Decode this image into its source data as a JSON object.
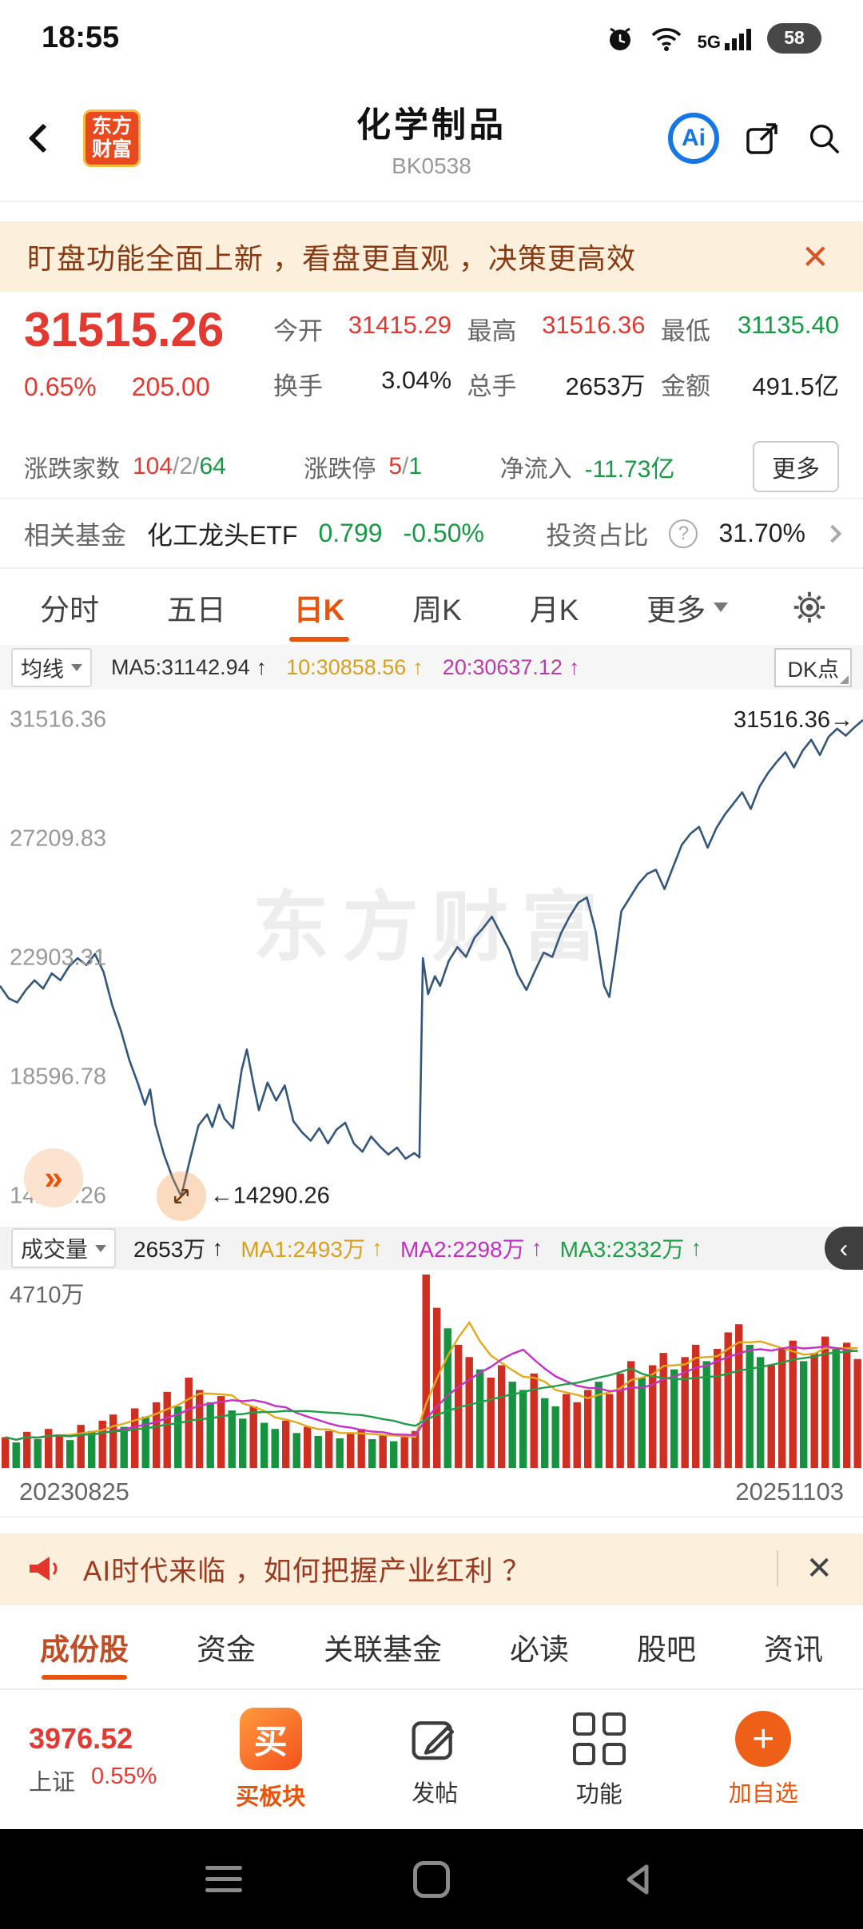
{
  "status_bar": {
    "time": "18:55",
    "network": "5G",
    "battery": "58"
  },
  "header": {
    "title": "化学制品",
    "code": "BK0538",
    "logo_line1": "东方",
    "logo_line2": "财富",
    "ai_label": "Ai"
  },
  "icons": {
    "close": "✕",
    "double_chevron": "»",
    "chevron_left": "‹",
    "help": "?",
    "plus": "+",
    "up_arrow": "↑"
  },
  "notice": {
    "text": "盯盘功能全面上新 ，看盘更直观 ，决策更高效"
  },
  "quote": {
    "price": "31515.26",
    "change_pct": "0.65%",
    "change_amt": "205.00",
    "open_label": "今开",
    "open": "31415.29",
    "high_label": "最高",
    "high": "31516.36",
    "low_label": "最低",
    "low": "31135.40",
    "turnover_label": "换手",
    "turnover": "3.04%",
    "volume_label": "总手",
    "volume": "2653万",
    "amount_label": "金额",
    "amount": "491.5亿",
    "adv_dec_label": "涨跌家数",
    "adv": "104",
    "flat": "2",
    "dec": "64",
    "slash": "/",
    "limit_label": "涨跌停",
    "limit_up": "5",
    "limit_down": "1",
    "inflow_label": "净流入",
    "inflow": "-11.73亿",
    "more_label": "更多"
  },
  "fund": {
    "label": "相关基金",
    "name": "化工龙头ETF",
    "price": "0.799",
    "change": "-0.50%",
    "ratio_label": "投资占比",
    "ratio": "31.70%"
  },
  "chart_tabs": {
    "items": [
      "分时",
      "五日",
      "日K",
      "周K",
      "月K"
    ],
    "more": "更多",
    "active_index": 2
  },
  "ma_bar": {
    "selector": "均线",
    "ma5": "MA5:31142.94",
    "ma10": "10:30858.56",
    "ma20": "20:30637.12",
    "arrow": "↑",
    "dk": "DK点"
  },
  "main_chart": {
    "watermark": "东方财富",
    "min_annotation": "←14290.26",
    "last_label": "31516.36→",
    "expand": "»"
  },
  "vol_bar": {
    "selector": "成交量",
    "vol": "2653万",
    "ma1": "MA1:2493万",
    "ma2": "MA2:2298万",
    "ma3": "MA3:2332万",
    "arrow": "↑"
  },
  "dates": {
    "start": "20230825",
    "end": "20251103"
  },
  "ad": {
    "text": "AI时代来临 ，如何把握产业红利 ？"
  },
  "bottom_tabs": {
    "items": [
      "成份股",
      "资金",
      "关联基金",
      "必读",
      "股吧",
      "资讯"
    ],
    "active_index": 0
  },
  "action_bar": {
    "index_value": "3976.52",
    "index_name": "上证",
    "index_change": "0.55%",
    "buy_icon_char": "买",
    "buy": "买板块",
    "post": "发帖",
    "tools": "功能",
    "add": "加自选"
  },
  "colors": {
    "accent": "#e8540c",
    "up": "#e23a31",
    "down": "#169a43",
    "line": "#33567c",
    "banner_text": "#8a3a12"
  },
  "chart_data": [
    {
      "type": "line",
      "name": "daily-k-trend",
      "period": "日K",
      "title": "化学制品 BK0538 日K",
      "y_ticks": [
        31516.36,
        27209.83,
        22903.31,
        18596.78,
        14290.26
      ],
      "y_min": 14290.26,
      "y_max": 31516.36,
      "x_start": "20230825",
      "x_end": "20251103",
      "line_color": "#33567c",
      "points": [
        [
          0,
          21900
        ],
        [
          1,
          21450
        ],
        [
          2,
          21300
        ],
        [
          3,
          21750
        ],
        [
          4,
          22100
        ],
        [
          5,
          21800
        ],
        [
          6,
          22350
        ],
        [
          7,
          22100
        ],
        [
          8,
          22600
        ],
        [
          9,
          22900
        ],
        [
          10,
          22650
        ],
        [
          11,
          23050
        ],
        [
          12,
          22400
        ],
        [
          13,
          21200
        ],
        [
          14,
          20300
        ],
        [
          15,
          19200
        ],
        [
          16,
          18350
        ],
        [
          16.8,
          17600
        ],
        [
          17.4,
          18150
        ],
        [
          18,
          16900
        ],
        [
          19,
          15800
        ],
        [
          20,
          14950
        ],
        [
          21,
          14290.26
        ],
        [
          22,
          15600
        ],
        [
          23,
          16850
        ],
        [
          24,
          17250
        ],
        [
          24.6,
          16800
        ],
        [
          25.4,
          17600
        ],
        [
          26,
          17100
        ],
        [
          27,
          16750
        ],
        [
          28,
          18850
        ],
        [
          28.6,
          19600
        ],
        [
          29.4,
          18300
        ],
        [
          30,
          17400
        ],
        [
          31,
          18400
        ],
        [
          32,
          17750
        ],
        [
          33,
          18300
        ],
        [
          34,
          17000
        ],
        [
          35,
          16600
        ],
        [
          36,
          16300
        ],
        [
          37,
          16750
        ],
        [
          38,
          16200
        ],
        [
          39,
          16700
        ],
        [
          40,
          16950
        ],
        [
          41,
          16200
        ],
        [
          42,
          15900
        ],
        [
          43,
          16450
        ],
        [
          44,
          16100
        ],
        [
          45,
          15800
        ],
        [
          46,
          16050
        ],
        [
          47,
          15650
        ],
        [
          48,
          15850
        ],
        [
          48.6,
          15700
        ],
        [
          49,
          22900
        ],
        [
          49.6,
          21600
        ],
        [
          50.4,
          22250
        ],
        [
          51,
          21900
        ],
        [
          52,
          22800
        ],
        [
          53,
          23300
        ],
        [
          54,
          22950
        ],
        [
          55,
          23650
        ],
        [
          56,
          24000
        ],
        [
          57,
          24400
        ],
        [
          58,
          23800
        ],
        [
          59,
          23200
        ],
        [
          60,
          22300
        ],
        [
          61,
          21750
        ],
        [
          62,
          22450
        ],
        [
          63,
          23100
        ],
        [
          64,
          22950
        ],
        [
          65,
          23800
        ],
        [
          66,
          24400
        ],
        [
          67,
          24900
        ],
        [
          68,
          25100
        ],
        [
          69,
          23900
        ],
        [
          70,
          21900
        ],
        [
          70.6,
          21500
        ],
        [
          71.4,
          23200
        ],
        [
          72,
          24600
        ],
        [
          73,
          25100
        ],
        [
          74,
          25600
        ],
        [
          75,
          25950
        ],
        [
          76,
          26100
        ],
        [
          77,
          25400
        ],
        [
          78,
          26200
        ],
        [
          79,
          27000
        ],
        [
          80,
          27400
        ],
        [
          81,
          27650
        ],
        [
          82,
          26900
        ],
        [
          83,
          27600
        ],
        [
          84,
          28100
        ],
        [
          85,
          28500
        ],
        [
          86,
          28900
        ],
        [
          87,
          28300
        ],
        [
          88,
          29100
        ],
        [
          89,
          29600
        ],
        [
          90,
          30000
        ],
        [
          91,
          30350
        ],
        [
          92,
          29800
        ],
        [
          93,
          30400
        ],
        [
          94,
          30800
        ],
        [
          95,
          30250
        ],
        [
          96,
          30900
        ],
        [
          97,
          31200
        ],
        [
          98,
          30950
        ],
        [
          99,
          31250
        ],
        [
          100,
          31516.36
        ]
      ]
    },
    {
      "type": "bar",
      "name": "volume",
      "unit": "万",
      "y_max": 4710,
      "y_max_label": "4710万",
      "up_color": "#cf2f21",
      "down_color": "#17933f",
      "ma_windows": [
        5,
        10,
        20
      ],
      "ma_colors": [
        "#e2aa1c",
        "#c531c5",
        "#1f9e47"
      ],
      "values": [
        750,
        620,
        880,
        700,
        950,
        820,
        680,
        1050,
        900,
        1150,
        1300,
        1000,
        1450,
        1250,
        1600,
        1850,
        1500,
        2200,
        1900,
        1600,
        1750,
        1400,
        1200,
        1500,
        1100,
        950,
        1150,
        850,
        1000,
        780,
        900,
        720,
        850,
        950,
        700,
        800,
        650,
        750,
        900,
        4710,
        3900,
        3400,
        3000,
        2700,
        2400,
        2200,
        2500,
        2100,
        1900,
        2300,
        1700,
        1500,
        1800,
        1600,
        1900,
        2100,
        1800,
        2300,
        2600,
        2200,
        2500,
        2800,
        2400,
        2700,
        3000,
        2600,
        2900,
        3300,
        3500,
        3000,
        2700,
        2500,
        2900,
        3100,
        2600,
        2800,
        3200,
        2900,
        3050,
        2653
      ],
      "dirs": "rgrgrrgrgrrgrgrrgrrgrggrggrgrgrgrrgrgrrrrgrrgrrggrggrrrgrrrgrrgrrgrrrggrrrgrrgrr"
    }
  ]
}
